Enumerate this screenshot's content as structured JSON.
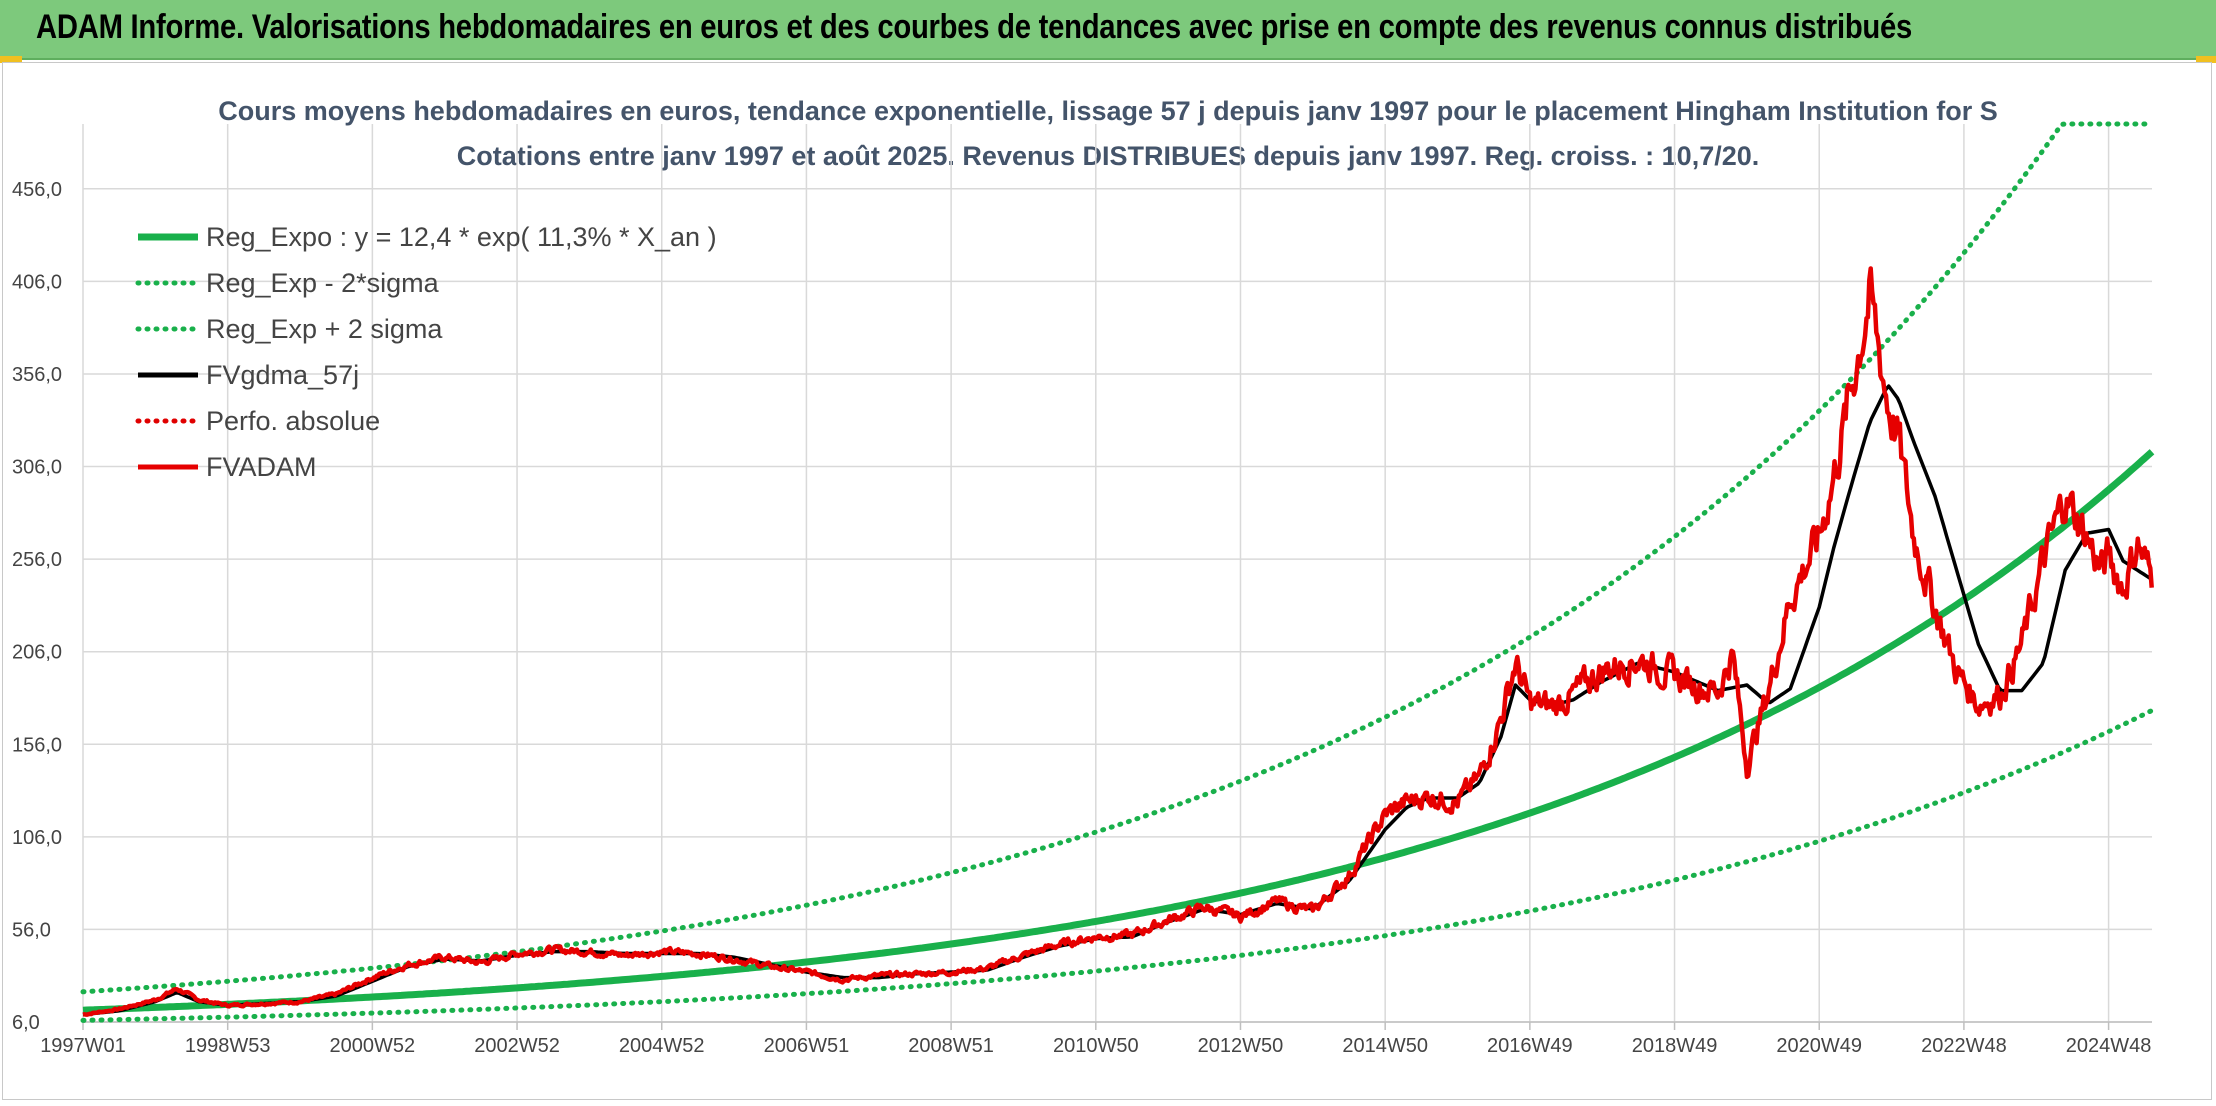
{
  "banner": {
    "title": "ADAM Informe. Valorisations hebdomadaires en euros et des courbes de tendances avec prise en compte des revenus connus distribués"
  },
  "chart_data": {
    "type": "line",
    "title": "Cours moyens hebdomadaires en euros, tendance exponentielle, lissage 57 j depuis janv 1997 pour le placement Hingham Institution for S",
    "subtitle": "Cotations entre janv 1997 et août 2025. Revenus DISTRIBUES depuis janv 1997. Reg. croiss. : 10,7/20.",
    "xlabel": "",
    "ylabel": "",
    "xlim": [
      1997.0,
      2025.6
    ],
    "ylim": [
      6,
      491
    ],
    "x_ticks": [
      {
        "label": "1997W01",
        "x": 1997.0
      },
      {
        "label": "1998W53",
        "x": 1999.0
      },
      {
        "label": "2000W52",
        "x": 2001.0
      },
      {
        "label": "2002W52",
        "x": 2003.0
      },
      {
        "label": "2004W52",
        "x": 2005.0
      },
      {
        "label": "2006W51",
        "x": 2007.0
      },
      {
        "label": "2008W51",
        "x": 2009.0
      },
      {
        "label": "2010W50",
        "x": 2011.0
      },
      {
        "label": "2012W50",
        "x": 2013.0
      },
      {
        "label": "2014W50",
        "x": 2015.0
      },
      {
        "label": "2016W49",
        "x": 2017.0
      },
      {
        "label": "2018W49",
        "x": 2019.0
      },
      {
        "label": "2020W49",
        "x": 2021.0
      },
      {
        "label": "2022W48",
        "x": 2023.0
      },
      {
        "label": "2024W48",
        "x": 2025.0
      }
    ],
    "y_ticks": [
      {
        "label": "6,0",
        "v": 6
      },
      {
        "label": "56,0",
        "v": 56
      },
      {
        "label": "106,0",
        "v": 106
      },
      {
        "label": "156,0",
        "v": 156
      },
      {
        "label": "206,0",
        "v": 206
      },
      {
        "label": "256,0",
        "v": 256
      },
      {
        "label": "306,0",
        "v": 306
      },
      {
        "label": "356,0",
        "v": 356
      },
      {
        "label": "406,0",
        "v": 406
      },
      {
        "label": "456,0",
        "v": 456
      }
    ],
    "grid": true,
    "legend_position": "top-left",
    "series": [
      {
        "name": "Reg_Expo : y = 12,4 * exp( 11,3% *  X_an )",
        "kind": "exp",
        "a": 12.4,
        "b": 0.113,
        "factor": 1.0,
        "color": "#19b04b",
        "style": "solid"
      },
      {
        "name": "Reg_Exp - 2*sigma",
        "kind": "exp",
        "a": 12.4,
        "b": 0.113,
        "factor": 0.555,
        "color": "#19b04b",
        "style": "dotted"
      },
      {
        "name": "Reg_Exp + 2 sigma",
        "kind": "exp",
        "a": 12.4,
        "b": 0.113,
        "factor": 1.8,
        "cap": 491,
        "color": "#19b04b",
        "style": "dotted"
      },
      {
        "name": "FVgdma_57j",
        "kind": "data",
        "color": "#000000",
        "style": "solid",
        "x": [
          1997.0,
          1997.5,
          1998.0,
          1998.3,
          1998.6,
          1999.0,
          1999.5,
          2000.0,
          2000.5,
          2001.0,
          2001.5,
          2002.0,
          2002.5,
          2003.0,
          2003.5,
          2004.0,
          2004.5,
          2005.0,
          2005.5,
          2006.0,
          2006.5,
          2007.0,
          2007.5,
          2008.0,
          2008.5,
          2009.0,
          2009.5,
          2010.0,
          2010.5,
          2011.0,
          2011.5,
          2012.0,
          2012.5,
          2013.0,
          2013.5,
          2014.0,
          2014.5,
          2015.0,
          2015.3,
          2015.6,
          2016.0,
          2016.3,
          2016.6,
          2016.8,
          2017.0,
          2017.3,
          2017.6,
          2018.0,
          2018.5,
          2019.0,
          2019.3,
          2019.6,
          2020.0,
          2020.3,
          2020.6,
          2021.0,
          2021.2,
          2021.4,
          2021.7,
          2021.95,
          2022.1,
          2022.3,
          2022.6,
          2022.9,
          2023.2,
          2023.5,
          2023.8,
          2024.1,
          2024.4,
          2024.7,
          2025.0,
          2025.2,
          2025.4,
          2025.6
        ],
        "y": [
          10,
          12,
          17,
          22,
          17,
          15,
          16,
          17,
          20,
          28,
          36,
          40,
          39,
          42,
          44,
          44,
          43,
          43,
          43,
          41,
          37,
          33,
          30,
          30,
          32,
          33,
          34,
          41,
          47,
          51,
          52,
          60,
          67,
          64,
          70,
          67,
          82,
          110,
          122,
          127,
          127,
          135,
          160,
          188,
          180,
          177,
          180,
          190,
          200,
          195,
          190,
          185,
          188,
          178,
          186,
          230,
          262,
          290,
          330,
          350,
          342,
          320,
          290,
          250,
          210,
          185,
          185,
          200,
          250,
          270,
          272,
          255,
          250,
          245
        ]
      },
      {
        "name": "Perfo. absolue",
        "kind": "data",
        "color": "#e00000",
        "style": "dotted",
        "x": [],
        "y": []
      },
      {
        "name": "FVADAM",
        "kind": "data",
        "color": "#e60000",
        "style": "solid",
        "noise_amp": 0.035,
        "noise_seed": 7,
        "x": [
          1997.0,
          1997.5,
          1998.0,
          1998.3,
          1998.6,
          1999.0,
          1999.5,
          2000.0,
          2000.5,
          2001.0,
          2001.5,
          2002.0,
          2002.5,
          2003.0,
          2003.5,
          2004.0,
          2004.5,
          2005.0,
          2005.5,
          2006.0,
          2006.5,
          2007.0,
          2007.5,
          2008.0,
          2008.5,
          2009.0,
          2009.5,
          2010.0,
          2010.5,
          2011.0,
          2011.5,
          2012.0,
          2012.5,
          2013.0,
          2013.5,
          2014.0,
          2014.5,
          2015.0,
          2015.3,
          2015.6,
          2016.0,
          2016.3,
          2016.6,
          2016.8,
          2017.0,
          2017.3,
          2017.6,
          2018.0,
          2018.5,
          2019.0,
          2019.3,
          2019.6,
          2019.8,
          2020.0,
          2020.3,
          2020.6,
          2021.0,
          2021.2,
          2021.4,
          2021.7,
          2021.95,
          2022.1,
          2022.3,
          2022.6,
          2022.9,
          2023.2,
          2023.5,
          2023.8,
          2024.1,
          2024.4,
          2024.7,
          2024.9,
          2025.0,
          2025.2,
          2025.4,
          2025.6
        ],
        "y": [
          10,
          13,
          18,
          24,
          18,
          15,
          16,
          17,
          21,
          30,
          37,
          41,
          38,
          43,
          45,
          44,
          42,
          44,
          43,
          40,
          36,
          33,
          29,
          31,
          32,
          33,
          35,
          42,
          48,
          52,
          53,
          61,
          68,
          63,
          71,
          66,
          85,
          118,
          125,
          128,
          125,
          138,
          170,
          200,
          178,
          176,
          183,
          196,
          202,
          193,
          188,
          185,
          205,
          145,
          185,
          235,
          268,
          300,
          340,
          398,
          340,
          320,
          270,
          230,
          195,
          178,
          183,
          210,
          255,
          290,
          268,
          250,
          258,
          240,
          265,
          245
        ]
      }
    ]
  },
  "chart_colors": {
    "grid": "#d9d9d9",
    "axis_text": "#444444",
    "title": "#44546a",
    "banner_bg": "#7dc97c"
  }
}
